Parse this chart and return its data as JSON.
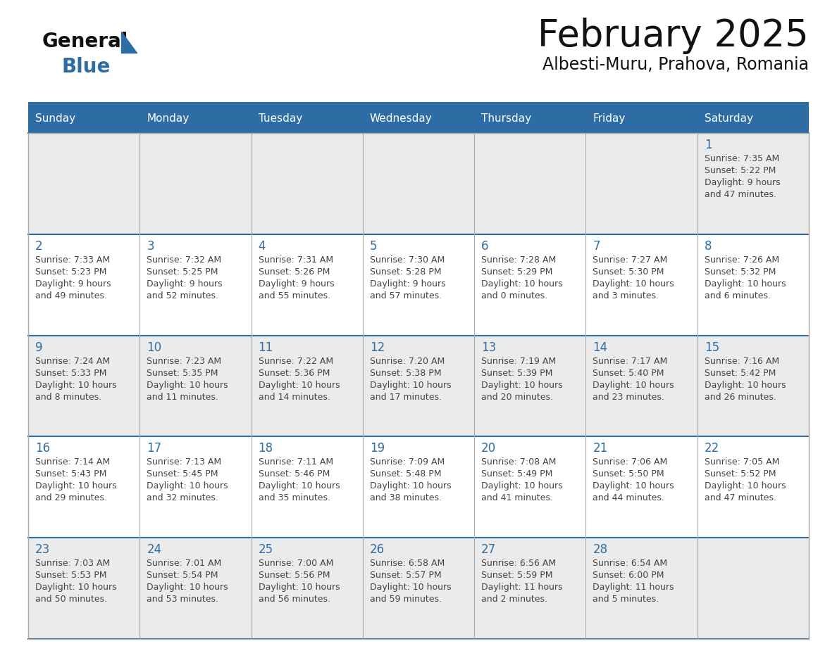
{
  "title": "February 2025",
  "subtitle": "Albesti-Muru, Prahova, Romania",
  "days_of_week": [
    "Sunday",
    "Monday",
    "Tuesday",
    "Wednesday",
    "Thursday",
    "Friday",
    "Saturday"
  ],
  "header_bg": "#2E6DA4",
  "header_text": "#FFFFFF",
  "cell_bg_even": "#EBEBEB",
  "cell_bg_odd": "#FFFFFF",
  "cell_border": "#AAAAAA",
  "row_sep_color": "#2E6DA4",
  "day_num_color": "#2E6DA4",
  "text_color": "#444444",
  "title_color": "#111111",
  "logo_general_color": "#111111",
  "logo_blue_color": "#2E6DA4",
  "calendar_data": [
    [
      null,
      null,
      null,
      null,
      null,
      null,
      {
        "day": "1",
        "sunrise": "7:35 AM",
        "sunset": "5:22 PM",
        "daylight": "9 hours\nand 47 minutes."
      }
    ],
    [
      {
        "day": "2",
        "sunrise": "7:33 AM",
        "sunset": "5:23 PM",
        "daylight": "9 hours\nand 49 minutes."
      },
      {
        "day": "3",
        "sunrise": "7:32 AM",
        "sunset": "5:25 PM",
        "daylight": "9 hours\nand 52 minutes."
      },
      {
        "day": "4",
        "sunrise": "7:31 AM",
        "sunset": "5:26 PM",
        "daylight": "9 hours\nand 55 minutes."
      },
      {
        "day": "5",
        "sunrise": "7:30 AM",
        "sunset": "5:28 PM",
        "daylight": "9 hours\nand 57 minutes."
      },
      {
        "day": "6",
        "sunrise": "7:28 AM",
        "sunset": "5:29 PM",
        "daylight": "10 hours\nand 0 minutes."
      },
      {
        "day": "7",
        "sunrise": "7:27 AM",
        "sunset": "5:30 PM",
        "daylight": "10 hours\nand 3 minutes."
      },
      {
        "day": "8",
        "sunrise": "7:26 AM",
        "sunset": "5:32 PM",
        "daylight": "10 hours\nand 6 minutes."
      }
    ],
    [
      {
        "day": "9",
        "sunrise": "7:24 AM",
        "sunset": "5:33 PM",
        "daylight": "10 hours\nand 8 minutes."
      },
      {
        "day": "10",
        "sunrise": "7:23 AM",
        "sunset": "5:35 PM",
        "daylight": "10 hours\nand 11 minutes."
      },
      {
        "day": "11",
        "sunrise": "7:22 AM",
        "sunset": "5:36 PM",
        "daylight": "10 hours\nand 14 minutes."
      },
      {
        "day": "12",
        "sunrise": "7:20 AM",
        "sunset": "5:38 PM",
        "daylight": "10 hours\nand 17 minutes."
      },
      {
        "day": "13",
        "sunrise": "7:19 AM",
        "sunset": "5:39 PM",
        "daylight": "10 hours\nand 20 minutes."
      },
      {
        "day": "14",
        "sunrise": "7:17 AM",
        "sunset": "5:40 PM",
        "daylight": "10 hours\nand 23 minutes."
      },
      {
        "day": "15",
        "sunrise": "7:16 AM",
        "sunset": "5:42 PM",
        "daylight": "10 hours\nand 26 minutes."
      }
    ],
    [
      {
        "day": "16",
        "sunrise": "7:14 AM",
        "sunset": "5:43 PM",
        "daylight": "10 hours\nand 29 minutes."
      },
      {
        "day": "17",
        "sunrise": "7:13 AM",
        "sunset": "5:45 PM",
        "daylight": "10 hours\nand 32 minutes."
      },
      {
        "day": "18",
        "sunrise": "7:11 AM",
        "sunset": "5:46 PM",
        "daylight": "10 hours\nand 35 minutes."
      },
      {
        "day": "19",
        "sunrise": "7:09 AM",
        "sunset": "5:48 PM",
        "daylight": "10 hours\nand 38 minutes."
      },
      {
        "day": "20",
        "sunrise": "7:08 AM",
        "sunset": "5:49 PM",
        "daylight": "10 hours\nand 41 minutes."
      },
      {
        "day": "21",
        "sunrise": "7:06 AM",
        "sunset": "5:50 PM",
        "daylight": "10 hours\nand 44 minutes."
      },
      {
        "day": "22",
        "sunrise": "7:05 AM",
        "sunset": "5:52 PM",
        "daylight": "10 hours\nand 47 minutes."
      }
    ],
    [
      {
        "day": "23",
        "sunrise": "7:03 AM",
        "sunset": "5:53 PM",
        "daylight": "10 hours\nand 50 minutes."
      },
      {
        "day": "24",
        "sunrise": "7:01 AM",
        "sunset": "5:54 PM",
        "daylight": "10 hours\nand 53 minutes."
      },
      {
        "day": "25",
        "sunrise": "7:00 AM",
        "sunset": "5:56 PM",
        "daylight": "10 hours\nand 56 minutes."
      },
      {
        "day": "26",
        "sunrise": "6:58 AM",
        "sunset": "5:57 PM",
        "daylight": "10 hours\nand 59 minutes."
      },
      {
        "day": "27",
        "sunrise": "6:56 AM",
        "sunset": "5:59 PM",
        "daylight": "11 hours\nand 2 minutes."
      },
      {
        "day": "28",
        "sunrise": "6:54 AM",
        "sunset": "6:00 PM",
        "daylight": "11 hours\nand 5 minutes."
      },
      null
    ]
  ]
}
